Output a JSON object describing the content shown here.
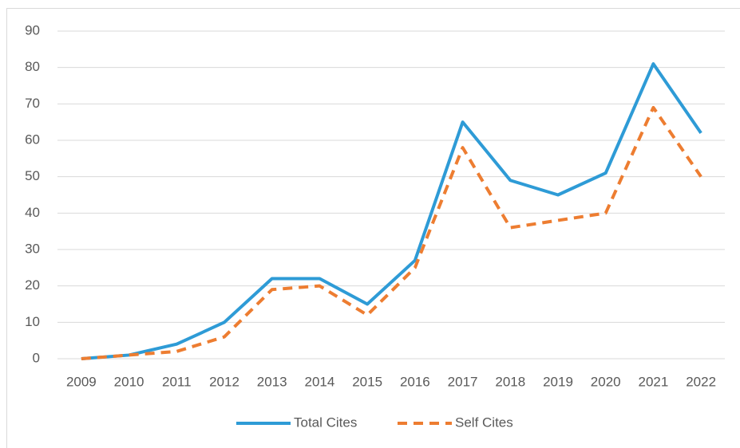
{
  "chart_data": {
    "type": "line",
    "categories": [
      "2009",
      "2010",
      "2011",
      "2012",
      "2013",
      "2014",
      "2015",
      "2016",
      "2017",
      "2018",
      "2019",
      "2020",
      "2021",
      "2022"
    ],
    "series": [
      {
        "name": "Total Cites",
        "color": "#2e9bd6",
        "dash": false,
        "values": [
          0,
          1,
          4,
          10,
          22,
          22,
          15,
          27,
          65,
          49,
          45,
          51,
          81,
          62
        ]
      },
      {
        "name": "Self Cites",
        "color": "#ed7d31",
        "dash": true,
        "values": [
          0,
          1,
          2,
          6,
          19,
          20,
          12,
          25,
          58,
          36,
          38,
          40,
          69,
          50
        ]
      }
    ],
    "ylim": [
      0,
      90
    ],
    "yticks": [
      0,
      10,
      20,
      30,
      40,
      50,
      60,
      70,
      80,
      90
    ],
    "grid": true,
    "legend": "bottom"
  }
}
